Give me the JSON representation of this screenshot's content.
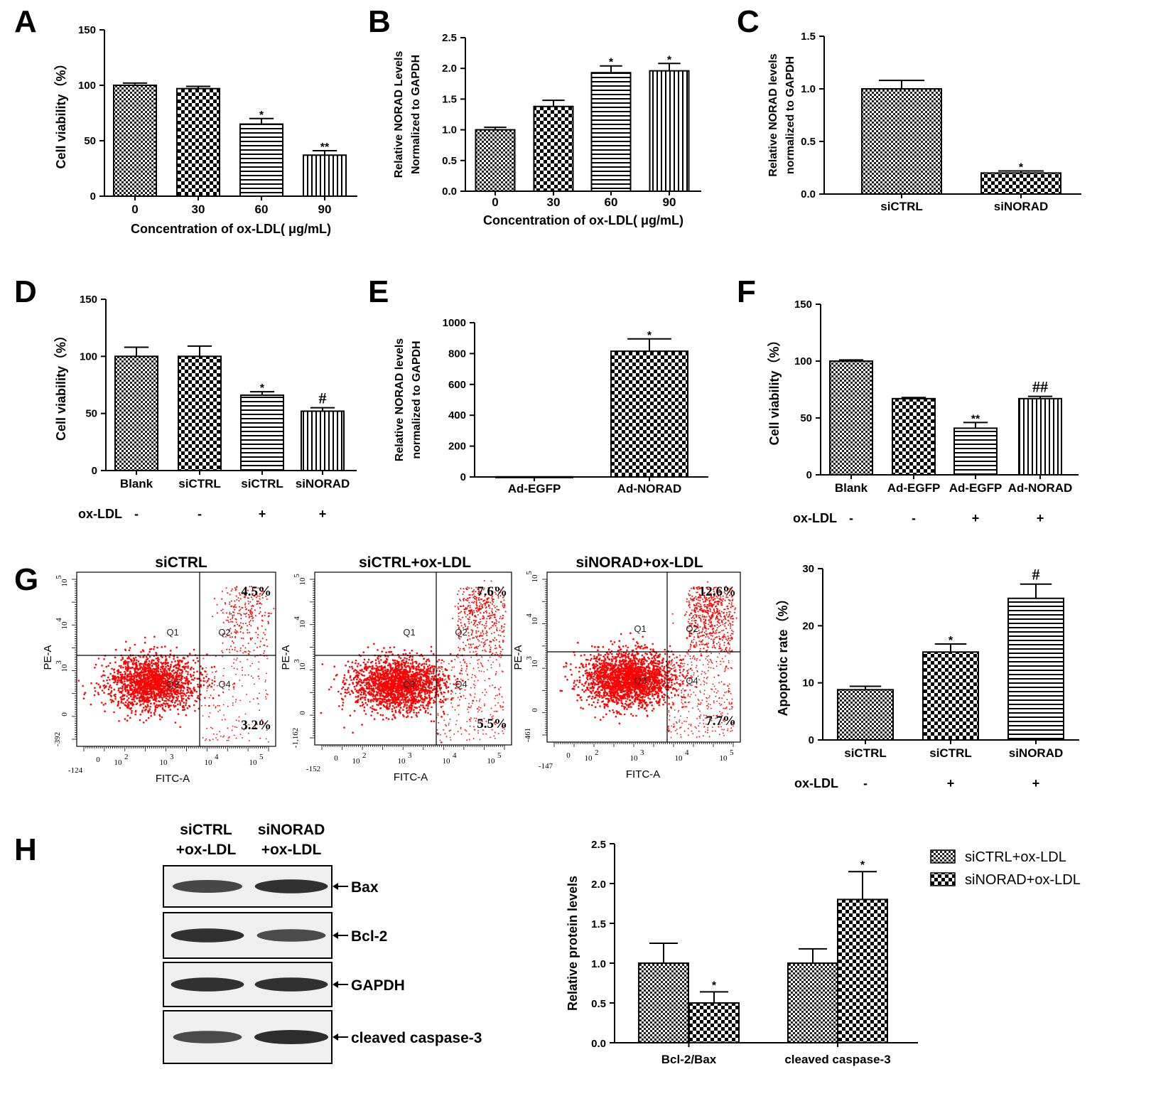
{
  "chart_data": [
    {
      "panel": "A",
      "type": "bar",
      "categories": [
        "0",
        "30",
        "60",
        "90"
      ],
      "values": [
        100,
        97,
        65,
        37
      ],
      "errors": [
        2,
        2,
        5,
        4
      ],
      "patterns": [
        "check",
        "check2",
        "hlines",
        "vlines"
      ],
      "annotations": [
        "",
        "",
        "*",
        "**"
      ],
      "xlabel": "Concentration of ox-LDL( μg/mL)",
      "ylabel": "Cell viability（%）",
      "ylim": [
        0,
        150
      ],
      "yticks": [
        0,
        50,
        100,
        150
      ]
    },
    {
      "panel": "B",
      "type": "bar",
      "categories": [
        "0",
        "30",
        "60",
        "90"
      ],
      "values": [
        1.0,
        1.38,
        1.93,
        1.96
      ],
      "errors": [
        0.04,
        0.1,
        0.11,
        0.12
      ],
      "patterns": [
        "check",
        "check2",
        "hlines",
        "vlines"
      ],
      "annotations": [
        "",
        "",
        "*",
        "*"
      ],
      "xlabel": "Concentration of ox-LDL( μg/mL)",
      "ylabel": "Relative NORAD Levels",
      "ylabel2": "Normalized to GAPDH",
      "ylim": [
        0,
        2.5
      ],
      "yticks": [
        "0.0",
        "0.5",
        "1.0",
        "1.5",
        "2.0",
        "2.5"
      ]
    },
    {
      "panel": "C",
      "type": "bar",
      "categories": [
        "siCTRL",
        "siNORAD"
      ],
      "values": [
        1.0,
        0.2
      ],
      "errors": [
        0.08,
        0.02
      ],
      "patterns": [
        "check",
        "check2"
      ],
      "annotations": [
        "",
        "*"
      ],
      "xlabel": "",
      "ylabel": "Relative NORAD levels",
      "ylabel2": "normalized to GAPDH",
      "ylim": [
        0,
        1.5
      ],
      "yticks": [
        "0.0",
        "0.5",
        "1.0",
        "1.5"
      ]
    },
    {
      "panel": "D",
      "type": "bar",
      "categories": [
        "Blank",
        "siCTRL",
        "siCTRL",
        "siNORAD"
      ],
      "values": [
        100,
        100,
        66,
        52
      ],
      "errors": [
        8,
        9,
        3,
        3
      ],
      "patterns": [
        "check",
        "check2",
        "hlines",
        "vlines"
      ],
      "annotations": [
        "",
        "",
        "*",
        "#"
      ],
      "oxldl": [
        "-",
        "-",
        "+",
        "+"
      ],
      "oxldl_label": "ox-LDL",
      "xlabel": "",
      "ylabel": "Cell viability（%）",
      "ylim": [
        0,
        150
      ],
      "yticks": [
        0,
        50,
        100,
        150
      ]
    },
    {
      "panel": "E",
      "type": "bar",
      "categories": [
        "Ad-EGFP",
        "Ad-NORAD"
      ],
      "values": [
        1,
        815
      ],
      "errors": [
        0,
        80
      ],
      "patterns": [
        "check",
        "check2"
      ],
      "annotations": [
        "",
        "*"
      ],
      "xlabel": "",
      "ylabel": "Relative NORAD levels",
      "ylabel2": "normalized to GAPDH",
      "ylim": [
        0,
        1000
      ],
      "yticks": [
        0,
        200,
        400,
        600,
        800,
        1000
      ]
    },
    {
      "panel": "F",
      "type": "bar",
      "categories": [
        "Blank",
        "Ad-EGFP",
        "Ad-EGFP",
        "Ad-NORAD"
      ],
      "values": [
        100,
        67,
        41,
        67
      ],
      "errors": [
        1,
        1,
        5,
        2
      ],
      "patterns": [
        "check",
        "check2",
        "hlines",
        "vlines"
      ],
      "annotations": [
        "",
        "",
        "**",
        "##"
      ],
      "oxldl": [
        "-",
        "-",
        "+",
        "+"
      ],
      "oxldl_label": "ox-LDL",
      "xlabel": "",
      "ylabel": "Cell viability（%）",
      "ylim": [
        0,
        150
      ],
      "yticks": [
        0,
        50,
        100,
        150
      ]
    },
    {
      "panel": "G",
      "type": "bar",
      "categories": [
        "siCTRL",
        "siCTRL",
        "siNORAD"
      ],
      "values": [
        8.8,
        15.4,
        24.8
      ],
      "errors": [
        0.6,
        1.4,
        2.5
      ],
      "patterns": [
        "check",
        "check2",
        "hlines"
      ],
      "annotations": [
        "",
        "*",
        "#"
      ],
      "oxldl": [
        "-",
        "+",
        "+"
      ],
      "oxldl_label": "ox-LDL",
      "xlabel": "",
      "ylabel": "Apoptotic rate（%）",
      "ylim": [
        0,
        30
      ],
      "yticks": [
        0,
        10,
        20,
        30
      ]
    },
    {
      "panel": "H",
      "type": "bar",
      "categories": [
        "Bcl-2/Bax",
        "cleaved caspase-3"
      ],
      "series": [
        {
          "name": "siCTRL+ox-LDL",
          "values": [
            1.0,
            1.0
          ],
          "errors": [
            0.25,
            0.18
          ],
          "pattern": "check"
        },
        {
          "name": "siNORAD+ox-LDL",
          "values": [
            0.5,
            1.8
          ],
          "errors": [
            0.14,
            0.35
          ],
          "pattern": "check2"
        }
      ],
      "annotations": [
        [
          "",
          "*"
        ],
        [
          "",
          "*"
        ]
      ],
      "xlabel": "",
      "ylabel": "Relative protein levels",
      "ylim": [
        0,
        2.5
      ],
      "yticks": [
        "0.0",
        "0.5",
        "1.0",
        "1.5",
        "2.0",
        "2.5"
      ],
      "legend": "top-right"
    }
  ],
  "flow": {
    "panels": [
      {
        "title": "siCTRL",
        "q2": "4.5%",
        "q4": "3.2%",
        "xmin": "-124",
        "ymin": "-392"
      },
      {
        "title": "siCTRL+ox-LDL",
        "q2": "7.6%",
        "q4": "5.5%",
        "xmin": "-152",
        "ymin": "-1,162"
      },
      {
        "title": "siNORAD+ox-LDL",
        "q2": "12.6%",
        "q4": "7.7%",
        "xmin": "-147",
        "ymin": "-461"
      }
    ],
    "quadrants": [
      "Q1",
      "Q2",
      "Q3",
      "Q4"
    ],
    "xaxis": "FITC-A",
    "yaxis": "PE-A",
    "tick_zero": "0",
    "tick_base": "10",
    "tick_exps": [
      "2",
      "3",
      "4",
      "5"
    ],
    "yexps": [
      "3",
      "4",
      "5"
    ]
  },
  "western": {
    "header1": [
      "siCTRL",
      "siNORAD"
    ],
    "header2": [
      "+ox-LDL",
      "+ox-LDL"
    ],
    "bands": [
      "Bax",
      "Bcl-2",
      "GAPDH",
      "cleaved caspase-3"
    ]
  },
  "panel_letters": [
    "A",
    "B",
    "C",
    "D",
    "E",
    "F",
    "G",
    "H"
  ]
}
